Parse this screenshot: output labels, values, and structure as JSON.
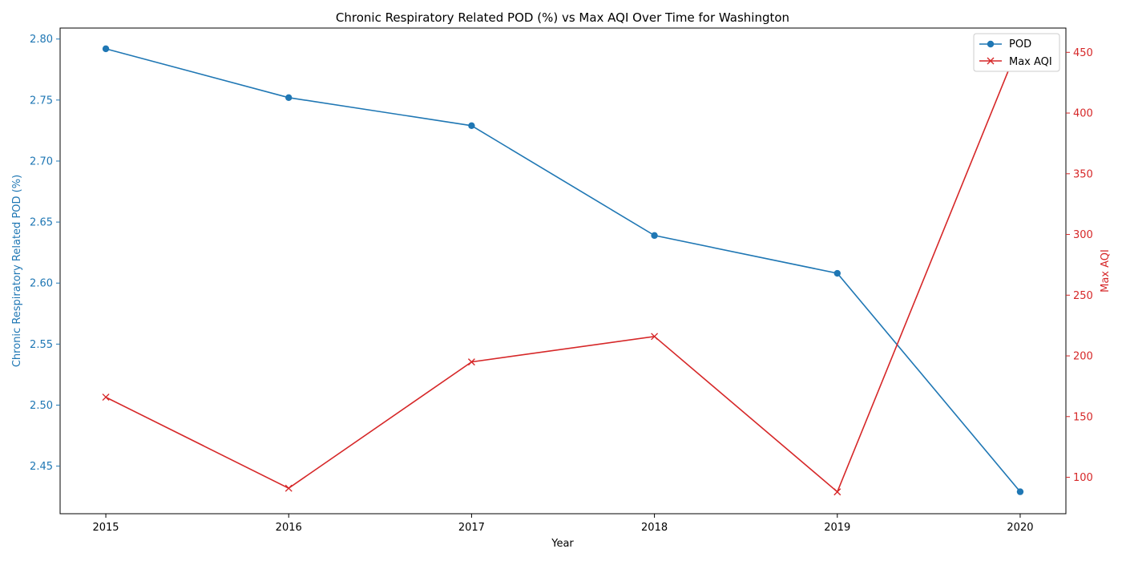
{
  "colors": {
    "pod": "#1f77b4",
    "aqi": "#d62728",
    "axis": "#000000",
    "legend_border": "#cccccc"
  },
  "chart_data": {
    "type": "line",
    "title": "Chronic Respiratory Related POD (%) vs Max AQI Over Time for Washington",
    "xlabel": "Year",
    "ylabel_left": "Chronic Respiratory Related POD (%)",
    "ylabel_right": "Max AQI",
    "x": [
      2015,
      2016,
      2017,
      2018,
      2019,
      2020
    ],
    "x_tick_labels": [
      "2015",
      "2016",
      "2017",
      "2018",
      "2019",
      "2020"
    ],
    "xlim": [
      2014.75,
      2020.25
    ],
    "y_left_lim": [
      2.411,
      2.809
    ],
    "y_left_ticks": [
      2.45,
      2.5,
      2.55,
      2.6,
      2.65,
      2.7,
      2.75,
      2.8
    ],
    "y_left_tick_labels": [
      "2.45",
      "2.50",
      "2.55",
      "2.60",
      "2.65",
      "2.70",
      "2.75",
      "2.80"
    ],
    "y_right_lim": [
      70,
      470
    ],
    "y_right_ticks": [
      100,
      150,
      200,
      250,
      300,
      350,
      400,
      450
    ],
    "y_right_tick_labels": [
      "100",
      "150",
      "200",
      "250",
      "300",
      "350",
      "400",
      "450"
    ],
    "grid": false,
    "legend_position": "top-right",
    "series": [
      {
        "name": "POD",
        "axis": "left",
        "marker": "circle",
        "values": [
          2.792,
          2.752,
          2.729,
          2.639,
          2.608,
          2.429
        ]
      },
      {
        "name": "Max AQI",
        "axis": "right",
        "marker": "x",
        "values": [
          166,
          91,
          195,
          216,
          88,
          459
        ]
      }
    ]
  }
}
